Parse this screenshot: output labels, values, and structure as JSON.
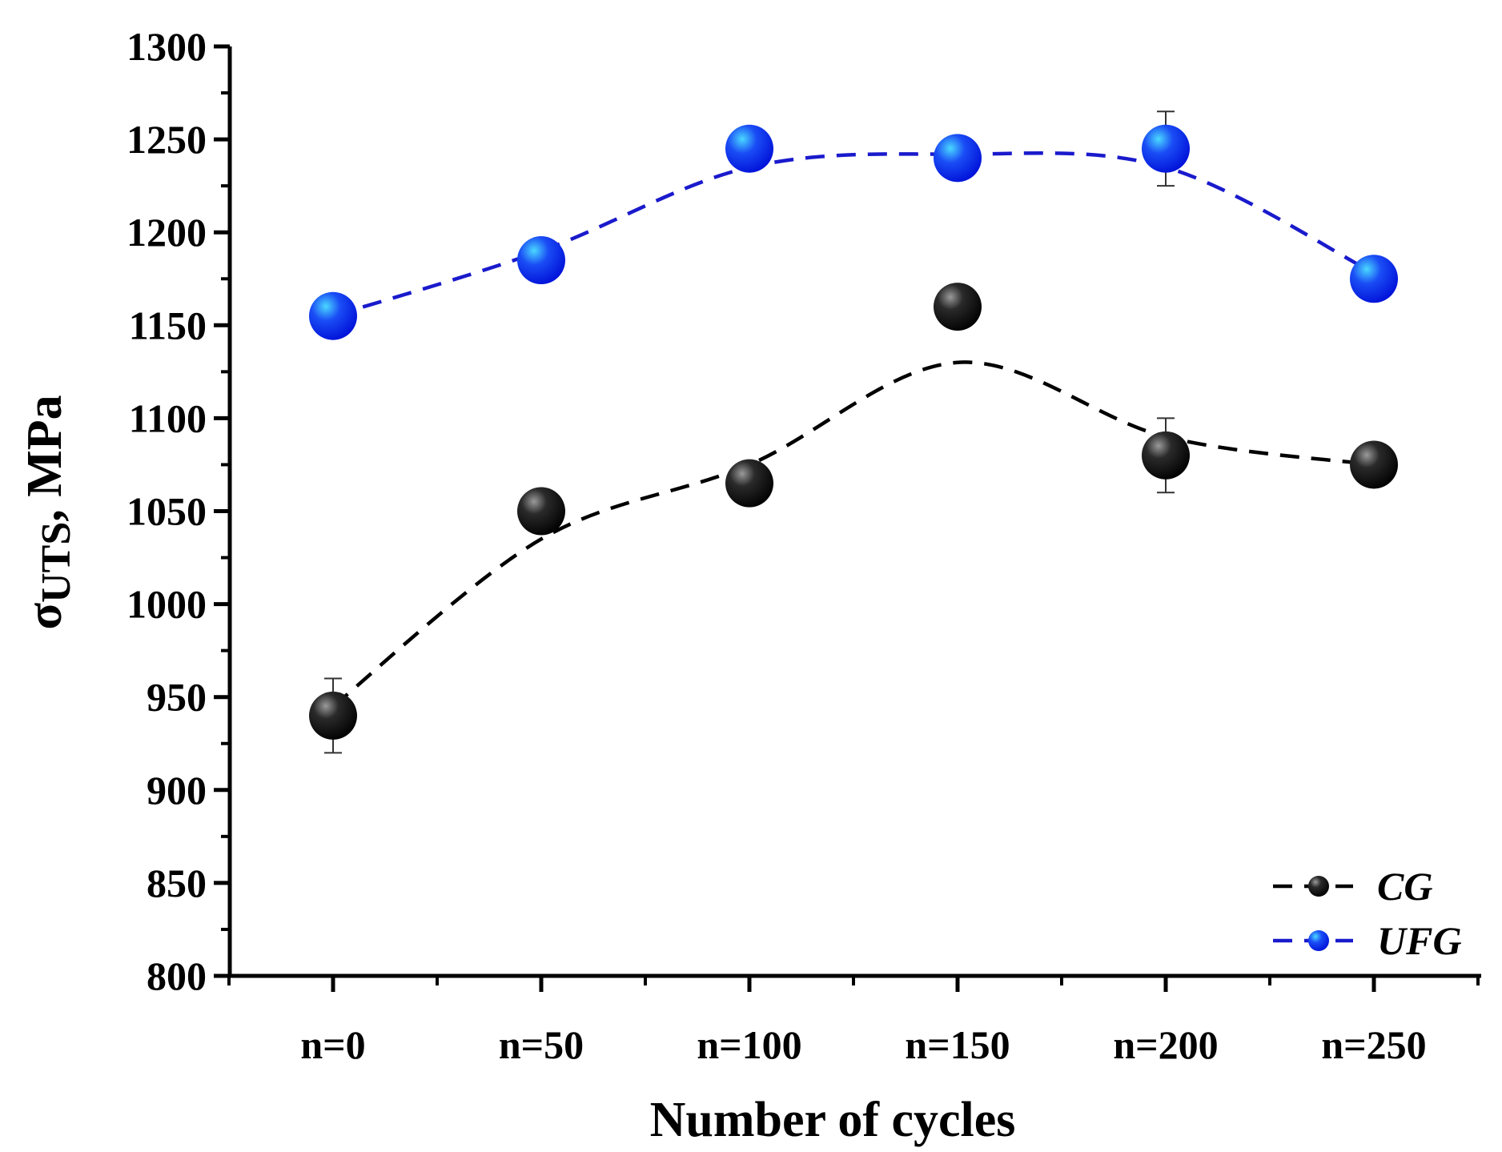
{
  "chart_data": {
    "type": "scatter",
    "title": "",
    "xlabel": "Number of cycles",
    "ylabel": {
      "symbol": "σ",
      "subscript": "UTS",
      "suffix": ", MPa"
    },
    "categories": [
      "n=0",
      "n=50",
      "n=100",
      "n=150",
      "n=200",
      "n=250"
    ],
    "ylim": [
      800,
      1300
    ],
    "yticks": [
      800,
      850,
      900,
      950,
      1000,
      1050,
      1100,
      1150,
      1200,
      1250,
      1300
    ],
    "grid": false,
    "legend_position": "bottom-right",
    "series": [
      {
        "name": "CG",
        "color": "#000000",
        "highlight": "#9a9a9a",
        "line_color": "#000000",
        "values": [
          940,
          1050,
          1065,
          1160,
          1080,
          1075
        ],
        "errors": [
          20,
          0,
          0,
          0,
          20,
          0
        ],
        "trend": [
          945,
          1035,
          1075,
          1130,
          1090,
          1075
        ]
      },
      {
        "name": "UFG",
        "color": "#0a1ee6",
        "highlight": "#4ad8ff",
        "line_color": "#1a1acc",
        "values": [
          1155,
          1185,
          1245,
          1240,
          1245,
          1175
        ],
        "errors": [
          0,
          0,
          0,
          0,
          20,
          0
        ],
        "trend": [
          1155,
          1190,
          1235,
          1242,
          1235,
          1178
        ]
      }
    ]
  }
}
